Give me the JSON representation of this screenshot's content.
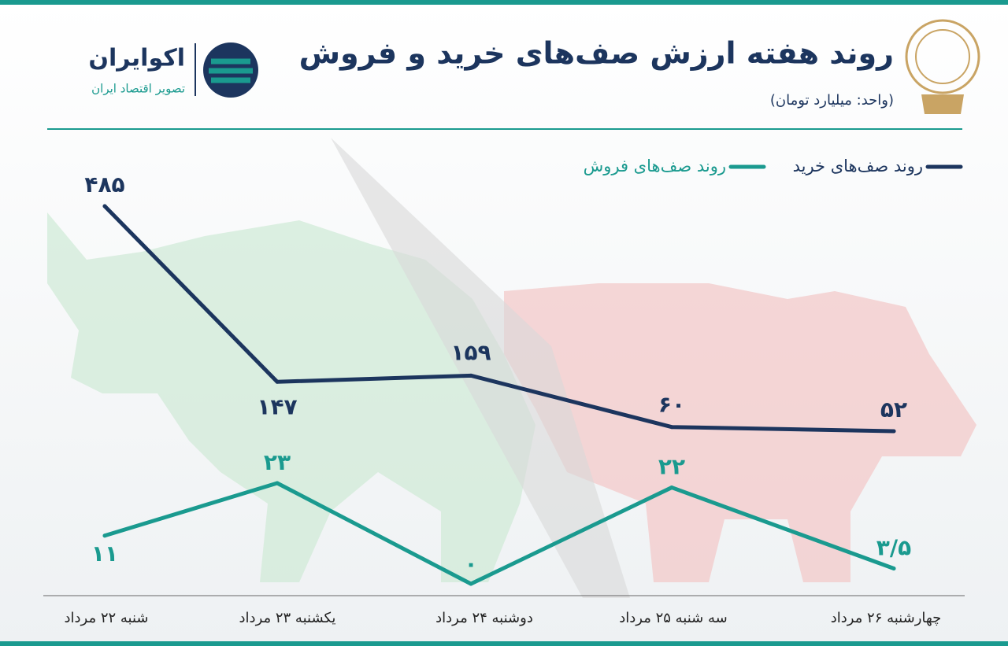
{
  "chart_data": {
    "type": "line",
    "title": "روند هفته ارزش صف‌های خرید و فروش",
    "subtitle": "(واحد: میلیارد تومان)",
    "categories": [
      "شنبه ۲۲ مرداد",
      "یکشنبه ۲۳ مرداد",
      "دوشنبه ۲۴ مرداد",
      "سه شنبه ۲۵ مرداد",
      "چهارشنبه ۲۶ مرداد"
    ],
    "series": [
      {
        "name": "روند صف‌های خرید",
        "color": "#1c355e",
        "values": [
          485,
          147,
          159,
          60,
          52
        ],
        "value_labels": [
          "۴۸۵",
          "۱۴۷",
          "۱۵۹",
          "۶۰",
          "۵۲"
        ]
      },
      {
        "name": "روند صف‌های فروش",
        "color": "#1a9a8f",
        "values": [
          11,
          23,
          0,
          22,
          3.5
        ],
        "value_labels": [
          "۱۱",
          "۲۳",
          "۰",
          "۲۲",
          "۳/۵"
        ]
      }
    ]
  },
  "logo": {
    "name": "اکوایران",
    "tagline": "تصویر اقتصاد ایران"
  }
}
